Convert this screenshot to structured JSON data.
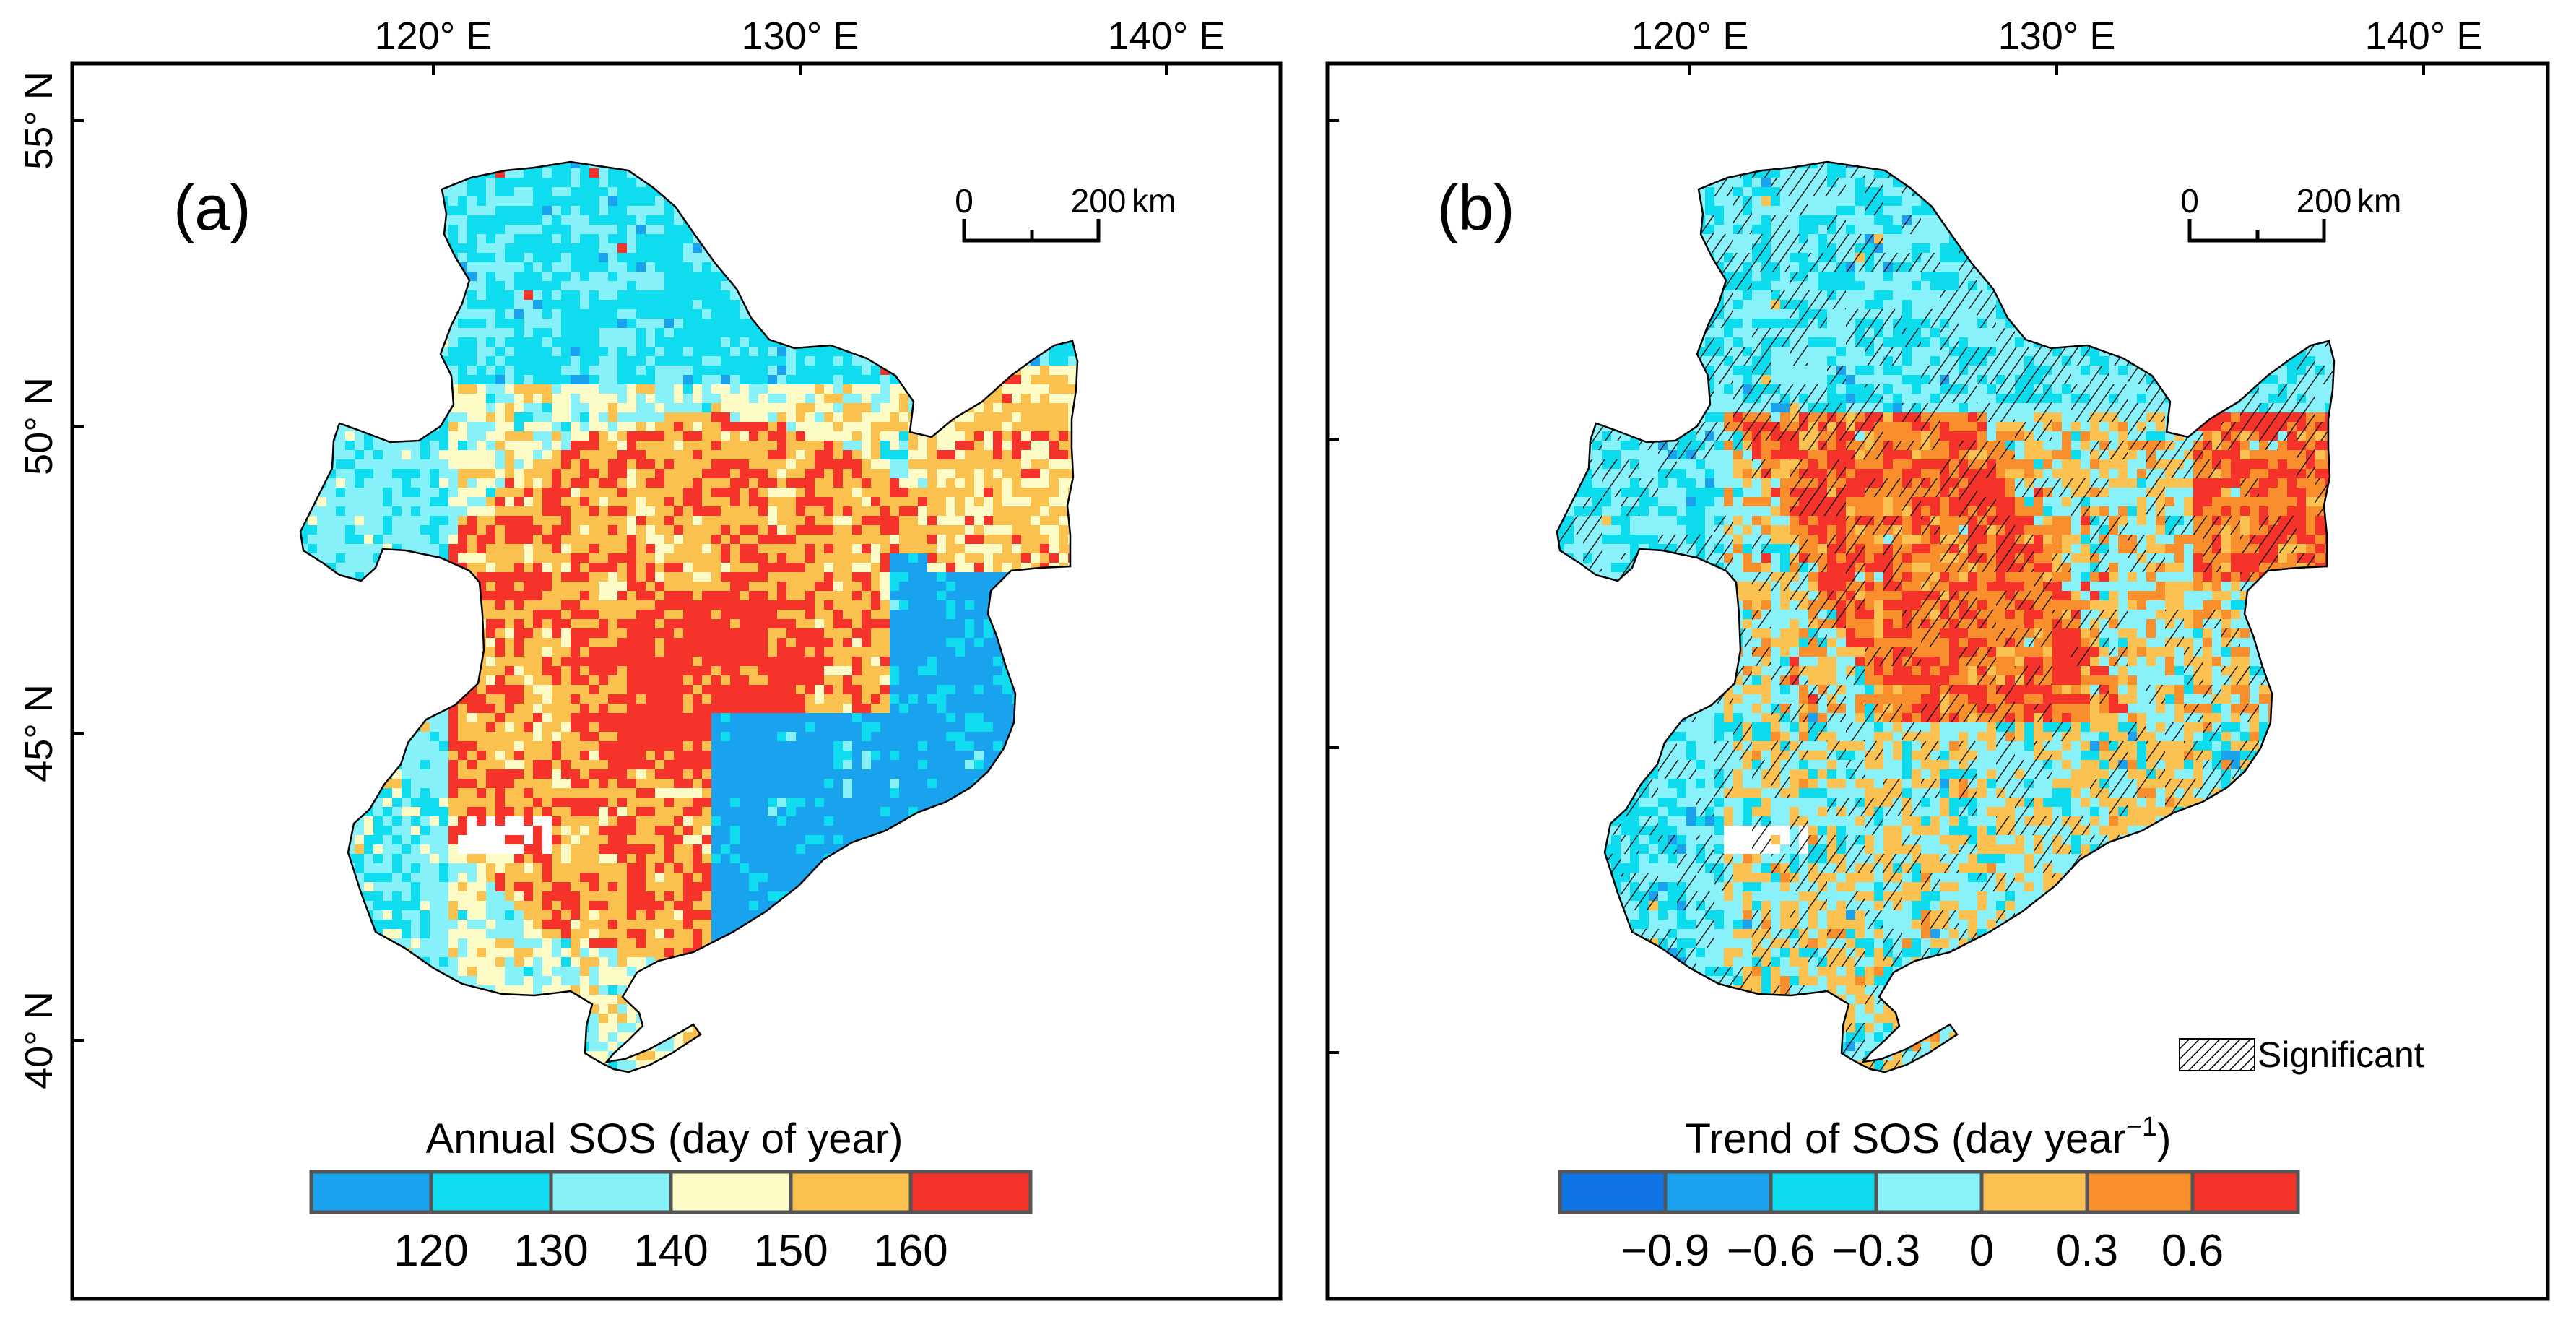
{
  "panels": [
    {
      "label": "(a)",
      "lon_ticks": [
        "120° E",
        "130° E",
        "140° E"
      ],
      "lat_ticks": [
        "55° N",
        "50° N",
        "45° N",
        "40° N"
      ],
      "scalebar": {
        "start": "0",
        "end": "200",
        "unit": "km"
      },
      "legend": {
        "title": "Annual SOS  (day of year)",
        "labels": [
          "120",
          "130",
          "140",
          "150",
          "160"
        ],
        "colors": [
          "#19a3ee",
          "#10dcf0",
          "#86f1f8",
          "#fefcc6",
          "#fbc14f",
          "#f6332a"
        ]
      }
    },
    {
      "label": "(b)",
      "lon_ticks": [
        "120° E",
        "130° E",
        "140° E"
      ],
      "scalebar": {
        "start": "0",
        "end": "200",
        "unit": "km"
      },
      "significance_label": "Significant",
      "legend": {
        "title": "Trend of SOS  (day year",
        "title_sup": "−1",
        "title_close": ")",
        "labels": [
          "−0.9",
          "−0.6",
          "−0.3",
          "0",
          "0.3",
          "0.6"
        ],
        "colors": [
          "#0f74e6",
          "#1aa2ee",
          "#0ddcef",
          "#88f1f9",
          "#fbc251",
          "#f98e2d",
          "#f6332a"
        ]
      }
    }
  ]
}
